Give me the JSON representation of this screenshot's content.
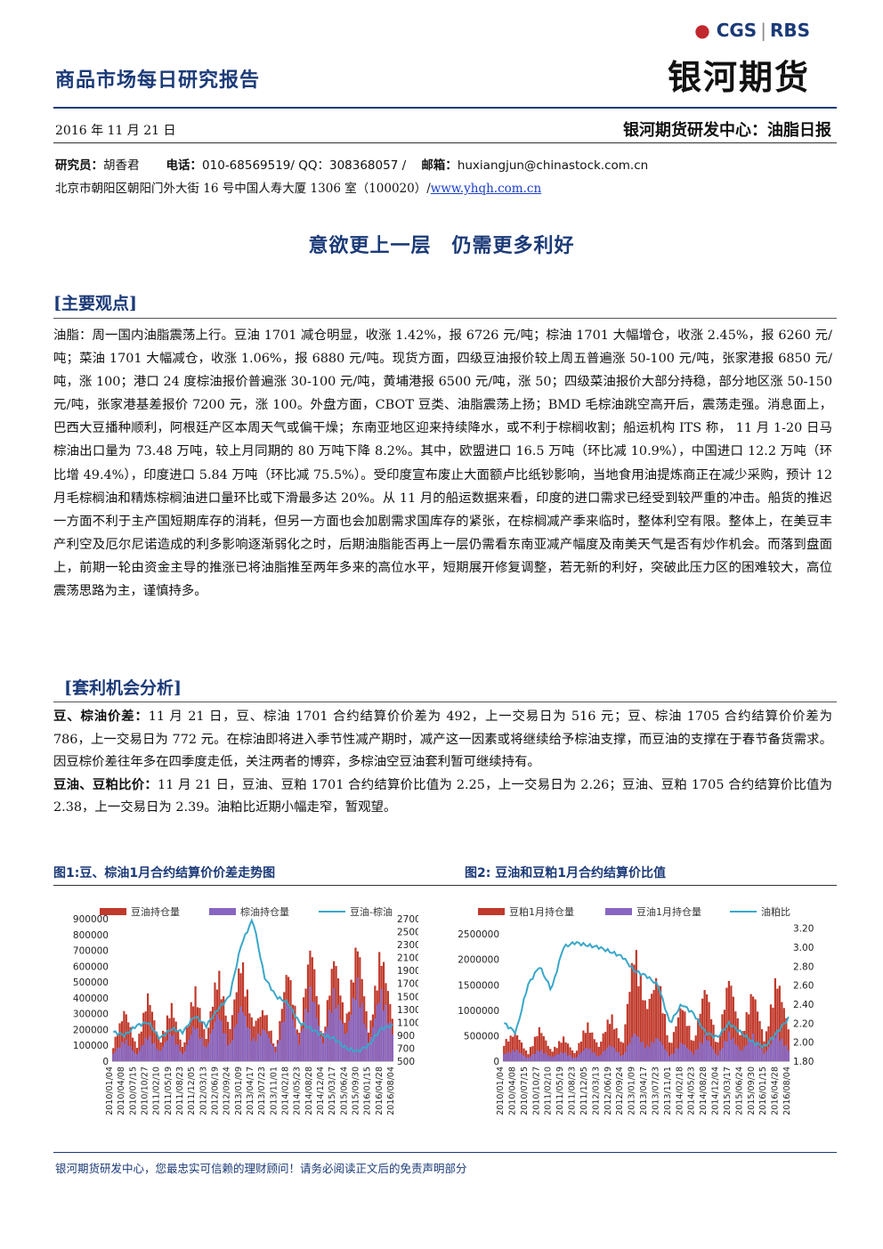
{
  "header": {
    "report_title": "商品市场每日研究报告",
    "logo_top": "CGS",
    "logo_partner": "RBS",
    "logo_cn": "银河期货",
    "date": "2016 年 11 月 21 日",
    "dept_title": "银河期货研发中心：油脂日报",
    "researcher_label": "研究员：",
    "researcher_name": "胡香君",
    "phone_label": "电话：",
    "phone_value": "010-68569519/ QQ：308368057 /",
    "email_label": "邮箱：",
    "email_value": "huxiangjun@chinastock.com.cn",
    "address": "北京市朝阳区朝阳门外大街 16 号中国人寿大厦 1306 室（100020）/",
    "website": "www.yhqh.com.cn"
  },
  "headline": "意欲更上一层　仍需更多利好",
  "main_section": {
    "title": "[主要观点]",
    "text": "油脂：周一国内油脂震荡上行。豆油 1701 减仓明显，收涨 1.42%，报 6726 元/吨；棕油 1701 大幅增仓，收涨 2.45%，报 6260 元/吨；菜油 1701 大幅减仓，收涨 1.06%，报 6880 元/吨。现货方面，四级豆油报价较上周五普遍涨 50-100 元/吨，张家港报 6850 元/吨，涨 100；港口 24 度棕油报价普遍涨 30-100 元/吨，黄埔港报 6500 元/吨，涨 50；四级菜油报价大部分持稳，部分地区涨 50-150 元/吨，张家港基差报价 7200 元，涨 100。外盘方面，CBOT 豆类、油脂震荡上扬；BMD 毛棕油跳空高开后，震荡走强。消息面上，巴西大豆播种顺利，阿根廷产区本周天气或偏干燥；东南亚地区迎来持续降水，或不利于棕榈收割；船运机构 ITS 称， 11 月 1-20 日马棕油出口量为 73.48 万吨，较上月同期的 80 万吨下降 8.2%。其中，欧盟进口 16.5 万吨（环比减 10.9%），中国进口 12.2 万吨（环比增 49.4%），印度进口 5.84 万吨（环比减 75.5%）。受印度宣布废止大面额卢比纸钞影响，当地食用油提炼商正在减少采购，预计 12 月毛棕榈油和精炼棕榈油进口量环比或下滑最多达 20%。从 11 月的船运数据来看，印度的进口需求已经受到较严重的冲击。船货的推迟一方面不利于主产国短期库存的消耗，但另一方面也会加剧需求国库存的紧张，在棕榈减产季来临时，整体利空有限。整体上，在美豆丰产利空及厄尔尼诺造成的利多影响逐渐弱化之时，后期油脂能否再上一层仍需看东南亚减产幅度及南美天气是否有炒作机会。而落到盘面上，前期一轮由资金主导的推涨已将油脂推至两年多来的高位水平，短期展开修复调整，若无新的利好，突破此压力区的困难较大，高位震荡思路为主，谨慎持多。"
  },
  "arb_section": {
    "title": "[套利机会分析]",
    "p1_label": "豆、棕油价差：",
    "p1_text": "11 月 21 日，豆、棕油 1701 合约结算价价差为 492，上一交易日为 516 元；豆、棕油 1705 合约结算价价差为 786，上一交易日为 772 元。在棕油即将进入季节性减产期时，减产这一因素或将继续给予棕油支撑，而豆油的支撑在于春节备货需求。因豆棕价差往年多在四季度走低，关注两者的博弈，多棕油空豆油套利暂可继续持有。",
    "p2_label": "豆油、豆粕比价：",
    "p2_text": "11 月 21 日，豆油、豆粕 1701 合约结算价比值为 2.25，上一交易日为 2.26；豆油、豆粕 1705 合约结算价比值为 2.38，上一交易日为 2.39。油粕比近期小幅走窄，暂观望。"
  },
  "figures": {
    "fig1_title": "图1:豆、棕油1月合约结算价价差走势图",
    "fig2_title": "图2: 豆油和豆粕1月合约结算价比值"
  },
  "chart_data": [
    {
      "type": "area",
      "title": "图1:豆、棕油1月合约结算价价差走势图",
      "legend": [
        "豆油持仓量",
        "棕油持仓量",
        "豆油-棕油"
      ],
      "legend_placement": "top",
      "colors": {
        "bar1": "#c0392b",
        "bar2": "#8866c0",
        "line": "#3aa7c9"
      },
      "y_left": {
        "lim": [
          0,
          900000
        ],
        "ticks": [
          "0",
          "100000",
          "200000",
          "300000",
          "400000",
          "500000",
          "600000",
          "700000",
          "800000",
          "900000"
        ]
      },
      "y_right": {
        "lim": [
          500,
          2700
        ],
        "ticks": [
          "500",
          "700",
          "900",
          "1100",
          "1300",
          "1500",
          "1700",
          "1900",
          "2100",
          "2300",
          "2500",
          "2700"
        ]
      },
      "x_ticks": [
        "2010/01/04",
        "2010/04/08",
        "2010/07/15",
        "2010/10/27",
        "2011/02/10",
        "2011/05/19",
        "2011/08/23",
        "2011/12/05",
        "2012/03/13",
        "2012/06/19",
        "2012/09/24",
        "2013/01/09",
        "2013/04/17",
        "2013/07/23",
        "2013/11/01",
        "2014/02/18",
        "2014/05/23",
        "2014/08/28",
        "2014/12/04",
        "2015/03/17",
        "2015/06/24",
        "2015/09/30",
        "2016/01/15",
        "2016/04/28",
        "2016/08/04"
      ],
      "series": [
        {
          "name": "豆油持仓量",
          "axis": "left",
          "values": [
            110000,
            350000,
            90000,
            450000,
            120000,
            380000,
            80000,
            500000,
            150000,
            620000,
            200000,
            700000,
            240000,
            350000,
            80000,
            640000,
            180000,
            800000,
            150000,
            720000,
            250000,
            820000,
            180000,
            760000,
            300000
          ]
        },
        {
          "name": "棕油持仓量",
          "axis": "left",
          "values": [
            50000,
            150000,
            40000,
            180000,
            60000,
            200000,
            40000,
            250000,
            90000,
            330000,
            100000,
            380000,
            140000,
            220000,
            60000,
            420000,
            120000,
            500000,
            110000,
            470000,
            160000,
            540000,
            110000,
            480000,
            200000
          ]
        },
        {
          "name": "豆油-棕油",
          "axis": "right",
          "values": [
            950,
            900,
            1050,
            1100,
            850,
            1000,
            950,
            1200,
            1050,
            1300,
            1500,
            2300,
            2700,
            1800,
            1500,
            1400,
            1100,
            1000,
            900,
            850,
            700,
            650,
            750,
            1000,
            1050
          ]
        }
      ]
    },
    {
      "type": "area",
      "title": "图2: 豆油和豆粕1月合约结算价比值",
      "legend": [
        "豆粕1月持仓量",
        "豆油1月持仓量",
        "油粕比"
      ],
      "legend_placement": "top",
      "colors": {
        "bar1": "#c0392b",
        "bar2": "#8866c0",
        "line": "#3aa7c9"
      },
      "y_left": {
        "lim": [
          0,
          2800000
        ],
        "ticks": [
          "0",
          "500000",
          "1000000",
          "1500000",
          "2000000",
          "2500000"
        ]
      },
      "y_right": {
        "lim": [
          1.8,
          3.3
        ],
        "ticks": [
          "1.80",
          "2.00",
          "2.20",
          "2.40",
          "2.60",
          "2.80",
          "3.00",
          "3.20"
        ]
      },
      "x_ticks": [
        "2010/01/04",
        "2010/04/08",
        "2010/07/15",
        "2010/10/27",
        "2011/02/10",
        "2011/05/19",
        "2011/08/23",
        "2011/12/05",
        "2012/03/13",
        "2012/06/19",
        "2012/09/24",
        "2013/01/09",
        "2013/04/17",
        "2013/07/23",
        "2013/11/01",
        "2014/02/18",
        "2014/05/23",
        "2014/08/28",
        "2014/12/04",
        "2015/03/17",
        "2015/06/24",
        "2015/09/30",
        "2016/01/15",
        "2016/04/28",
        "2016/08/04"
      ],
      "series": [
        {
          "name": "豆粕1月持仓量",
          "axis": "left",
          "values": [
            400000,
            600000,
            150000,
            700000,
            200000,
            500000,
            150000,
            800000,
            300000,
            1000000,
            300000,
            2400000,
            1100000,
            1800000,
            300000,
            1200000,
            400000,
            1600000,
            300000,
            1800000,
            500000,
            1500000,
            400000,
            1800000,
            700000
          ]
        },
        {
          "name": "豆油1月持仓量",
          "axis": "left",
          "values": [
            150000,
            250000,
            60000,
            250000,
            80000,
            200000,
            60000,
            300000,
            100000,
            350000,
            100000,
            600000,
            300000,
            500000,
            100000,
            400000,
            150000,
            550000,
            100000,
            600000,
            200000,
            550000,
            150000,
            600000,
            250000
          ]
        },
        {
          "name": "油粕比",
          "axis": "right",
          "values": [
            2.2,
            2.1,
            2.6,
            2.8,
            2.55,
            3.0,
            3.05,
            3.02,
            3.0,
            2.95,
            2.9,
            2.75,
            2.7,
            2.6,
            2.2,
            2.4,
            2.3,
            2.1,
            2.05,
            2.2,
            2.1,
            2.0,
            1.95,
            2.1,
            2.25
          ]
        }
      ]
    }
  ],
  "footer": {
    "text": "银河期货研发中心，您最忠实可信赖的理财顾问！请务必阅读正文后的免责声明部分"
  }
}
